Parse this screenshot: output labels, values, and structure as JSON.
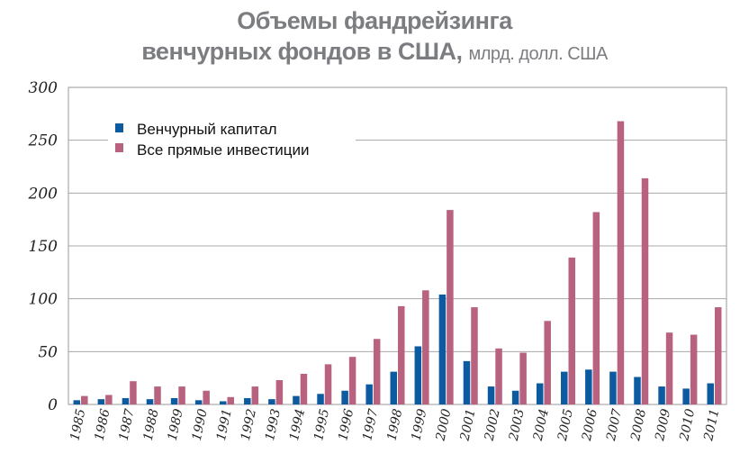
{
  "chart_data": {
    "type": "bar",
    "title_line1": "Объемы фандрейзинга",
    "title_line2": "венчурных фондов в США,",
    "subtitle": "млрд. долл. США",
    "xlabel": "",
    "ylabel": "",
    "ylim": [
      0,
      300
    ],
    "yticks": [
      "0",
      "50",
      "100",
      "150",
      "200",
      "250",
      "300"
    ],
    "grid": true,
    "legend_position": "top-left",
    "categories": [
      "1985",
      "1986",
      "1987",
      "1988",
      "1989",
      "1990",
      "1991",
      "1992",
      "1993",
      "1994",
      "1995",
      "1996",
      "1997",
      "1998",
      "1999",
      "2000",
      "2001",
      "2002",
      "2003",
      "2004",
      "2005",
      "2006",
      "2007",
      "2008",
      "2009",
      "2010",
      "2011"
    ],
    "series": [
      {
        "name": "Венчурный капитал",
        "color": "#0c5aa0",
        "values": [
          4,
          5,
          6,
          5,
          6,
          4,
          3,
          6,
          5,
          8,
          10,
          13,
          19,
          31,
          55,
          104,
          41,
          17,
          13,
          20,
          31,
          33,
          31,
          26,
          17,
          15,
          20
        ]
      },
      {
        "name": "Все прямые инвестиции",
        "color": "#b8627f",
        "values": [
          8,
          9,
          22,
          17,
          17,
          13,
          7,
          17,
          23,
          29,
          38,
          45,
          62,
          93,
          108,
          184,
          92,
          53,
          49,
          79,
          139,
          182,
          268,
          214,
          68,
          66,
          92
        ]
      }
    ]
  }
}
